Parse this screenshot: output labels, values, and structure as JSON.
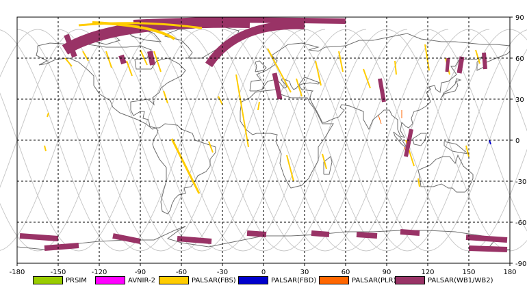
{
  "map": {
    "x_ticks": [
      "-180",
      "-150",
      "-120",
      "-90",
      "-60",
      "-30",
      "0",
      "30",
      "60",
      "90",
      "120",
      "150",
      "180"
    ],
    "y_ticks": [
      "90",
      "60",
      "30",
      "0",
      "-30",
      "-60",
      "-90"
    ]
  },
  "legend": [
    {
      "label": "PRSIM",
      "color": "#99cc00"
    },
    {
      "label": "AVNIR-2",
      "color": "#ff00ff"
    },
    {
      "label": "PALSAR(FBS)",
      "color": "#ffcc00"
    },
    {
      "label": "PALSAR(FBD)",
      "color": "#0000cc"
    },
    {
      "label": "PALSAR(PLR)",
      "color": "#ff6600"
    },
    {
      "label": "PALSAR(WB1/WB2)",
      "color": "#993366"
    }
  ],
  "colors": {
    "coastline": "#6e6e6e",
    "orbit": "#c8c8c8",
    "grid": "#000000"
  }
}
